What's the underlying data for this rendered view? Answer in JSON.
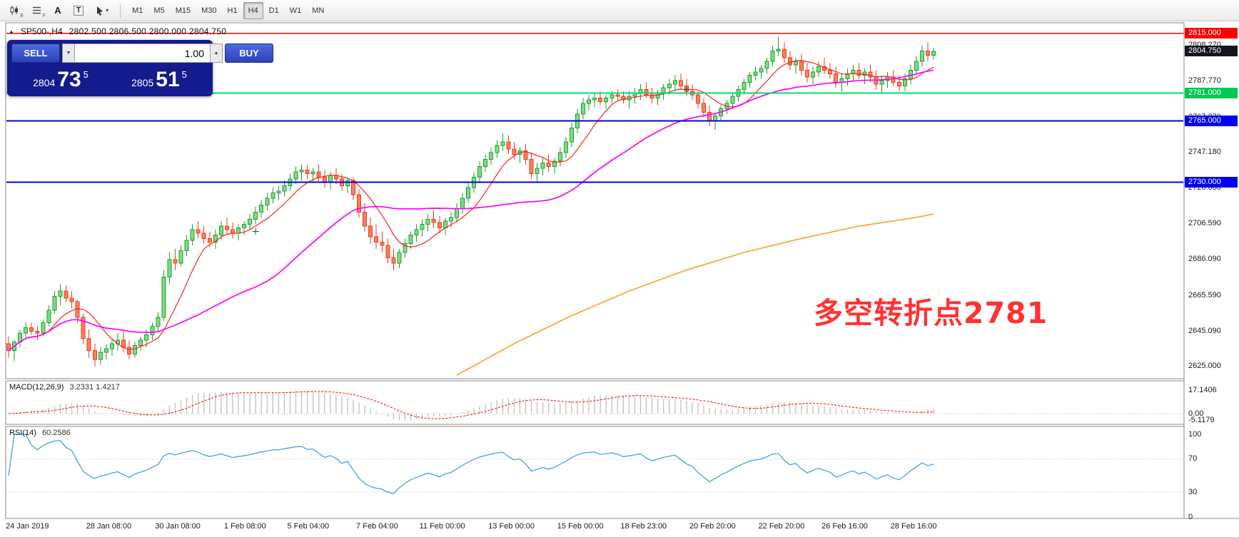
{
  "toolbar": {
    "icons": [
      {
        "name": "candlestick-chart-icon",
        "sub": "E"
      },
      {
        "name": "indicator-list-icon",
        "sub": "F"
      },
      {
        "name": "text-label-icon",
        "glyph": "A"
      },
      {
        "name": "text-box-icon",
        "glyph": "T"
      },
      {
        "name": "cursor-tool-icon",
        "caret": "▾"
      }
    ],
    "timeframes": [
      {
        "label": "M1",
        "active": false
      },
      {
        "label": "M5",
        "active": false
      },
      {
        "label": "M15",
        "active": false
      },
      {
        "label": "M30",
        "active": false
      },
      {
        "label": "H1",
        "active": false
      },
      {
        "label": "H4",
        "active": true
      },
      {
        "label": "D1",
        "active": false
      },
      {
        "label": "W1",
        "active": false
      },
      {
        "label": "MN",
        "active": false
      }
    ]
  },
  "symbol_line": {
    "collapse_icon": "▲",
    "symbol": "SP500-,H4",
    "ohlc": "2802.500 2806.500 2800.000 2804.750"
  },
  "trade_panel": {
    "sell_label": "SELL",
    "buy_label": "BUY",
    "volume": "1.00",
    "spin_down": "▼",
    "spin_up": "▲",
    "sell_price": {
      "prefix": "2804",
      "big": "73",
      "sup": "5"
    },
    "buy_price": {
      "prefix": "2805",
      "big": "51",
      "sup": "5"
    },
    "panel_bg": "#141b8e",
    "button_color": "#3a57cf"
  },
  "annotation": {
    "text": "多空转折点2781",
    "color": "#ff3232"
  },
  "price_scale": {
    "labels": [
      "2808.270",
      "2787.770",
      "2767.270",
      "2747.180",
      "2726.680",
      "2706.590",
      "2686.090",
      "2665.590",
      "2645.090",
      "2625.000"
    ],
    "badges": [
      {
        "text": "2815.000",
        "price": 2815.0,
        "bg": "#ff0000",
        "fg": "#ffffff"
      },
      {
        "text": "2804.750",
        "price": 2804.75,
        "bg": "#15151e",
        "fg": "#ffffff"
      },
      {
        "text": "2781.000",
        "price": 2781.0,
        "bg": "#00c853",
        "fg": "#ffffff"
      },
      {
        "text": "2765.000",
        "price": 2765.0,
        "bg": "#0000ee",
        "fg": "#ffffff"
      },
      {
        "text": "2730.000",
        "price": 2730.0,
        "bg": "#0000ee",
        "fg": "#ffffff"
      }
    ]
  },
  "macd_panel": {
    "label": "MACD(12,26,9)",
    "values": "3.2331 1.4217",
    "scale": [
      {
        "text": "17.1406",
        "value": 17.1406
      },
      {
        "text": "0.00",
        "value": 0
      },
      {
        "text": "-5.1179",
        "value": -5.1179
      }
    ]
  },
  "rsi_panel": {
    "label": "RSI(14)",
    "value": "60.2586",
    "scale": [
      {
        "text": "100",
        "value": 100
      },
      {
        "text": "70",
        "value": 70
      },
      {
        "text": "30",
        "value": 30
      },
      {
        "text": "0",
        "value": 0
      }
    ]
  },
  "time_axis": [
    {
      "text": "24 Jan 2019",
      "index": 0
    },
    {
      "text": "28 Jan 08:00",
      "index": 14
    },
    {
      "text": "30 Jan 08:00",
      "index": 26
    },
    {
      "text": "1 Feb 08:00",
      "index": 38
    },
    {
      "text": "5 Feb 04:00",
      "index": 49
    },
    {
      "text": "7 Feb 04:00",
      "index": 61
    },
    {
      "text": "11 Feb 00:00",
      "index": 72
    },
    {
      "text": "13 Feb 00:00",
      "index": 84
    },
    {
      "text": "15 Feb 00:00",
      "index": 96
    },
    {
      "text": "18 Feb 23:00",
      "index": 107
    },
    {
      "text": "20 Feb 20:00",
      "index": 119
    },
    {
      "text": "22 Feb 20:00",
      "index": 131
    },
    {
      "text": "26 Feb 16:00",
      "index": 142
    },
    {
      "text": "28 Feb 16:00",
      "index": 154
    }
  ],
  "chart_data": {
    "type": "candlestick",
    "title": "SP500- H4",
    "x_unit": "4-hour bars, 24 Jan 2019 to 1 Mar 2019",
    "y_range": [
      2618,
      2821
    ],
    "colors": {
      "up_fill": "#7ddc84",
      "up_stroke": "#1f9d2c",
      "down_fill": "#ff7e5a",
      "down_stroke": "#e83c1e"
    },
    "ohlc": [
      [
        2638,
        2642,
        2630,
        2634
      ],
      [
        2634,
        2640,
        2628,
        2639
      ],
      [
        2639,
        2646,
        2636,
        2644
      ],
      [
        2644,
        2650,
        2641,
        2647
      ],
      [
        2647,
        2650,
        2643,
        2645
      ],
      [
        2645,
        2648,
        2640,
        2644
      ],
      [
        2644,
        2652,
        2642,
        2650
      ],
      [
        2650,
        2660,
        2648,
        2657
      ],
      [
        2657,
        2668,
        2655,
        2665
      ],
      [
        2665,
        2672,
        2660,
        2668
      ],
      [
        2668,
        2671,
        2662,
        2664
      ],
      [
        2664,
        2668,
        2658,
        2662
      ],
      [
        2662,
        2663,
        2650,
        2653
      ],
      [
        2653,
        2655,
        2638,
        2641
      ],
      [
        2641,
        2646,
        2630,
        2634
      ],
      [
        2634,
        2638,
        2625,
        2629
      ],
      [
        2629,
        2636,
        2626,
        2633
      ],
      [
        2633,
        2638,
        2629,
        2635
      ],
      [
        2635,
        2641,
        2631,
        2638
      ],
      [
        2638,
        2644,
        2634,
        2640
      ],
      [
        2640,
        2645,
        2633,
        2636
      ],
      [
        2636,
        2640,
        2629,
        2632
      ],
      [
        2632,
        2639,
        2630,
        2637
      ],
      [
        2637,
        2642,
        2634,
        2640
      ],
      [
        2640,
        2646,
        2636,
        2643
      ],
      [
        2643,
        2650,
        2640,
        2648
      ],
      [
        2648,
        2656,
        2645,
        2653
      ],
      [
        2653,
        2680,
        2651,
        2676
      ],
      [
        2676,
        2690,
        2672,
        2686
      ],
      [
        2686,
        2692,
        2680,
        2684
      ],
      [
        2684,
        2694,
        2682,
        2691
      ],
      [
        2691,
        2700,
        2688,
        2697
      ],
      [
        2697,
        2706,
        2694,
        2703
      ],
      [
        2703,
        2708,
        2698,
        2701
      ],
      [
        2701,
        2705,
        2695,
        2698
      ],
      [
        2698,
        2702,
        2693,
        2696
      ],
      [
        2696,
        2703,
        2692,
        2700
      ],
      [
        2700,
        2708,
        2697,
        2705
      ],
      [
        2705,
        2710,
        2700,
        2703
      ],
      [
        2703,
        2707,
        2698,
        2701
      ],
      [
        2701,
        2706,
        2697,
        2704
      ],
      [
        2704,
        2708,
        2700,
        2706
      ],
      [
        2706,
        2712,
        2703,
        2709
      ],
      [
        2709,
        2716,
        2706,
        2713
      ],
      [
        2713,
        2720,
        2710,
        2717
      ],
      [
        2717,
        2724,
        2714,
        2721
      ],
      [
        2721,
        2727,
        2718,
        2724
      ],
      [
        2724,
        2728,
        2720,
        2725
      ],
      [
        2725,
        2731,
        2722,
        2728
      ],
      [
        2728,
        2735,
        2725,
        2732
      ],
      [
        2732,
        2739,
        2729,
        2736
      ],
      [
        2736,
        2740,
        2731,
        2737
      ],
      [
        2737,
        2740,
        2732,
        2735
      ],
      [
        2735,
        2738,
        2730,
        2736
      ],
      [
        2736,
        2740,
        2730,
        2733
      ],
      [
        2733,
        2737,
        2727,
        2730
      ],
      [
        2730,
        2736,
        2726,
        2734
      ],
      [
        2734,
        2738,
        2729,
        2732
      ],
      [
        2732,
        2735,
        2725,
        2728
      ],
      [
        2728,
        2733,
        2724,
        2731
      ],
      [
        2731,
        2733,
        2720,
        2723
      ],
      [
        2723,
        2726,
        2710,
        2713
      ],
      [
        2713,
        2718,
        2702,
        2705
      ],
      [
        2705,
        2710,
        2695,
        2699
      ],
      [
        2699,
        2706,
        2692,
        2696
      ],
      [
        2696,
        2702,
        2690,
        2694
      ],
      [
        2694,
        2698,
        2684,
        2687
      ],
      [
        2687,
        2692,
        2680,
        2684
      ],
      [
        2684,
        2692,
        2681,
        2690
      ],
      [
        2690,
        2698,
        2687,
        2695
      ],
      [
        2695,
        2702,
        2692,
        2700
      ],
      [
        2700,
        2706,
        2696,
        2703
      ],
      [
        2703,
        2709,
        2699,
        2706
      ],
      [
        2706,
        2712,
        2702,
        2709
      ],
      [
        2709,
        2714,
        2704,
        2707
      ],
      [
        2707,
        2711,
        2701,
        2704
      ],
      [
        2704,
        2710,
        2700,
        2708
      ],
      [
        2708,
        2713,
        2704,
        2710
      ],
      [
        2710,
        2718,
        2707,
        2715
      ],
      [
        2715,
        2724,
        2712,
        2721
      ],
      [
        2721,
        2730,
        2718,
        2727
      ],
      [
        2727,
        2736,
        2724,
        2733
      ],
      [
        2733,
        2742,
        2730,
        2739
      ],
      [
        2739,
        2746,
        2736,
        2743
      ],
      [
        2743,
        2750,
        2740,
        2747
      ],
      [
        2747,
        2754,
        2744,
        2751
      ],
      [
        2751,
        2758,
        2748,
        2753
      ],
      [
        2753,
        2757,
        2746,
        2749
      ],
      [
        2749,
        2753,
        2743,
        2746
      ],
      [
        2746,
        2750,
        2741,
        2748
      ],
      [
        2748,
        2752,
        2740,
        2743
      ],
      [
        2743,
        2747,
        2732,
        2735
      ],
      [
        2735,
        2741,
        2730,
        2738
      ],
      [
        2738,
        2744,
        2734,
        2741
      ],
      [
        2741,
        2746,
        2736,
        2739
      ],
      [
        2739,
        2744,
        2735,
        2742
      ],
      [
        2742,
        2750,
        2739,
        2747
      ],
      [
        2747,
        2756,
        2744,
        2753
      ],
      [
        2753,
        2764,
        2750,
        2761
      ],
      [
        2761,
        2772,
        2758,
        2769
      ],
      [
        2769,
        2778,
        2766,
        2775
      ],
      [
        2775,
        2780,
        2771,
        2777
      ],
      [
        2777,
        2781,
        2773,
        2778
      ],
      [
        2778,
        2782,
        2774,
        2776
      ],
      [
        2776,
        2780,
        2772,
        2778
      ],
      [
        2778,
        2782,
        2775,
        2780
      ],
      [
        2780,
        2783,
        2776,
        2779
      ],
      [
        2779,
        2782,
        2775,
        2777
      ],
      [
        2777,
        2782,
        2772,
        2779
      ],
      [
        2779,
        2784,
        2775,
        2781
      ],
      [
        2781,
        2786,
        2777,
        2783
      ],
      [
        2783,
        2787,
        2778,
        2780
      ],
      [
        2780,
        2784,
        2775,
        2778
      ],
      [
        2778,
        2783,
        2774,
        2781
      ],
      [
        2781,
        2786,
        2777,
        2784
      ],
      [
        2784,
        2789,
        2780,
        2786
      ],
      [
        2786,
        2791,
        2782,
        2788
      ],
      [
        2788,
        2792,
        2783,
        2785
      ],
      [
        2785,
        2789,
        2779,
        2782
      ],
      [
        2782,
        2786,
        2777,
        2780
      ],
      [
        2780,
        2782,
        2772,
        2775
      ],
      [
        2775,
        2778,
        2767,
        2770
      ],
      [
        2770,
        2774,
        2762,
        2765
      ],
      [
        2765,
        2770,
        2760,
        2768
      ],
      [
        2768,
        2774,
        2765,
        2772
      ],
      [
        2772,
        2777,
        2769,
        2775
      ],
      [
        2775,
        2781,
        2772,
        2779
      ],
      [
        2779,
        2785,
        2776,
        2783
      ],
      [
        2783,
        2789,
        2780,
        2787
      ],
      [
        2787,
        2793,
        2784,
        2791
      ],
      [
        2791,
        2796,
        2788,
        2793
      ],
      [
        2793,
        2797,
        2789,
        2795
      ],
      [
        2795,
        2801,
        2792,
        2799
      ],
      [
        2799,
        2808,
        2796,
        2805
      ],
      [
        2805,
        2813,
        2802,
        2806
      ],
      [
        2806,
        2810,
        2798,
        2801
      ],
      [
        2801,
        2805,
        2794,
        2797
      ],
      [
        2797,
        2801,
        2792,
        2799
      ],
      [
        2799,
        2803,
        2791,
        2794
      ],
      [
        2794,
        2798,
        2787,
        2790
      ],
      [
        2790,
        2796,
        2786,
        2793
      ],
      [
        2793,
        2799,
        2790,
        2796
      ],
      [
        2796,
        2801,
        2792,
        2794
      ],
      [
        2794,
        2798,
        2789,
        2792
      ],
      [
        2792,
        2796,
        2784,
        2787
      ],
      [
        2787,
        2792,
        2782,
        2789
      ],
      [
        2789,
        2795,
        2785,
        2792
      ],
      [
        2792,
        2797,
        2788,
        2794
      ],
      [
        2794,
        2798,
        2789,
        2791
      ],
      [
        2791,
        2795,
        2786,
        2793
      ],
      [
        2793,
        2797,
        2787,
        2790
      ],
      [
        2790,
        2794,
        2783,
        2786
      ],
      [
        2786,
        2791,
        2781,
        2788
      ],
      [
        2788,
        2793,
        2784,
        2790
      ],
      [
        2790,
        2794,
        2785,
        2787
      ],
      [
        2787,
        2791,
        2782,
        2785
      ],
      [
        2785,
        2792,
        2782,
        2789
      ],
      [
        2789,
        2797,
        2786,
        2794
      ],
      [
        2794,
        2802,
        2791,
        2799
      ],
      [
        2799,
        2808,
        2796,
        2805
      ],
      [
        2805,
        2810,
        2799,
        2802.5
      ],
      [
        2802.5,
        2806.5,
        2800,
        2804.75
      ]
    ],
    "overlays": {
      "ma_fast": {
        "type": "sma",
        "period": 8,
        "color": "#ff2222"
      },
      "ma_slow": {
        "type": "sma",
        "period": 34,
        "color": "#ff00ff"
      },
      "ma_long": {
        "type": "points",
        "color": "#ffa640",
        "points": [
          [
            78,
            2620
          ],
          [
            88,
            2638
          ],
          [
            98,
            2654
          ],
          [
            108,
            2668
          ],
          [
            118,
            2680
          ],
          [
            128,
            2690
          ],
          [
            138,
            2698
          ],
          [
            148,
            2705
          ],
          [
            158,
            2710
          ],
          [
            161,
            2712
          ]
        ]
      }
    },
    "hlines": [
      {
        "price": 2815,
        "color": "#ff0000",
        "width": 1.5
      },
      {
        "price": 2781,
        "color": "#00dc6e",
        "width": 2
      },
      {
        "price": 2765,
        "color": "#0000ee",
        "width": 2
      },
      {
        "price": 2730,
        "color": "#0000ee",
        "width": 2
      }
    ],
    "current_price": 2804.75,
    "markers": [
      {
        "index": 43,
        "price": 2702
      },
      {
        "index": 118,
        "price": 2783
      }
    ],
    "indicators": {
      "macd": {
        "fast": 12,
        "slow": 26,
        "signal": 9,
        "histogram_color": "#c0c0c0",
        "signal_color": "#ff0000",
        "current": [
          3.2331,
          1.4217
        ],
        "y_range": [
          -9,
          24
        ]
      },
      "rsi": {
        "period": 14,
        "color": "#4a9fe3",
        "current": 60.2586,
        "levels": [
          70,
          30
        ],
        "y_range": [
          0,
          100
        ]
      }
    }
  }
}
